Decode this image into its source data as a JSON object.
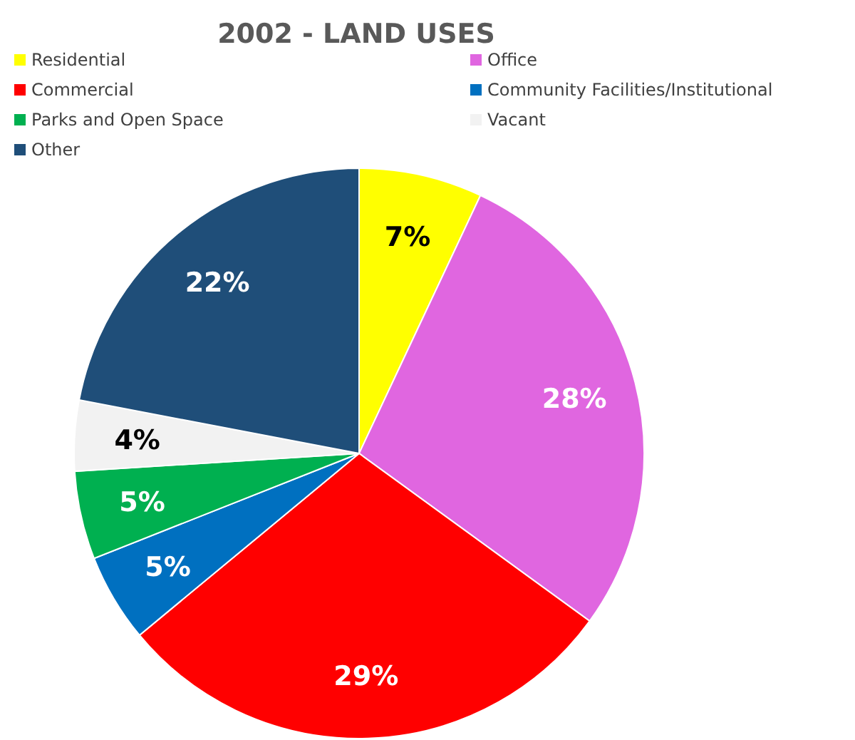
{
  "chart_data": {
    "type": "pie",
    "title": "2002 - LAND USES",
    "categories": [
      "Residential",
      "Office",
      "Commercial",
      "Community Facilities/Institutional",
      "Parks and Open Space",
      "Vacant",
      "Other"
    ],
    "values": [
      7,
      28,
      29,
      5,
      5,
      4,
      22
    ],
    "value_labels": [
      "7%",
      "28%",
      "29%",
      "5%",
      "5%",
      "4%",
      "22%"
    ],
    "colors": [
      "#ffff00",
      "#e066e0",
      "#ff0000",
      "#0070c0",
      "#00b050",
      "#f2f2f2",
      "#1f4e79"
    ],
    "legend": "top"
  }
}
